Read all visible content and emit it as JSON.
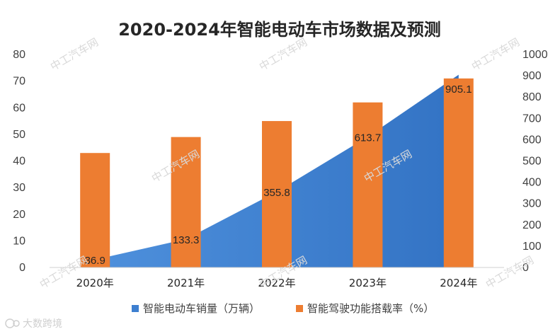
{
  "chart_data": {
    "type": "bar+area",
    "title": "2020-2024年智能电动车市场数据及预测",
    "categories": [
      "2020年",
      "2021年",
      "2022年",
      "2023年",
      "2024年"
    ],
    "left_axis": {
      "ticks": [
        "0",
        "10",
        "20",
        "30",
        "40",
        "50",
        "60",
        "70",
        "80"
      ],
      "ylim": [
        0,
        80
      ]
    },
    "right_axis": {
      "ticks": [
        "0",
        "100",
        "200",
        "300",
        "400",
        "500",
        "600",
        "700",
        "800",
        "900",
        "1000"
      ],
      "ylim": [
        0,
        1000
      ]
    },
    "series": [
      {
        "name": "智能电动车销量（万辆）",
        "type": "area",
        "axis": "right",
        "color": "#3d7fd0",
        "values": [
          36.9,
          133.3,
          355.8,
          613.7,
          905.1
        ],
        "labels": [
          "36.9",
          "133.3",
          "355.8",
          "613.7",
          "905.1"
        ]
      },
      {
        "name": "智能驾驶功能搭载率（%）",
        "type": "bar",
        "axis": "left",
        "color": "#ed7d31",
        "values": [
          43,
          49,
          55,
          62,
          71
        ]
      }
    ],
    "legend_position": "bottom"
  },
  "watermark": "中工汽车网",
  "brand": "大数跨境"
}
